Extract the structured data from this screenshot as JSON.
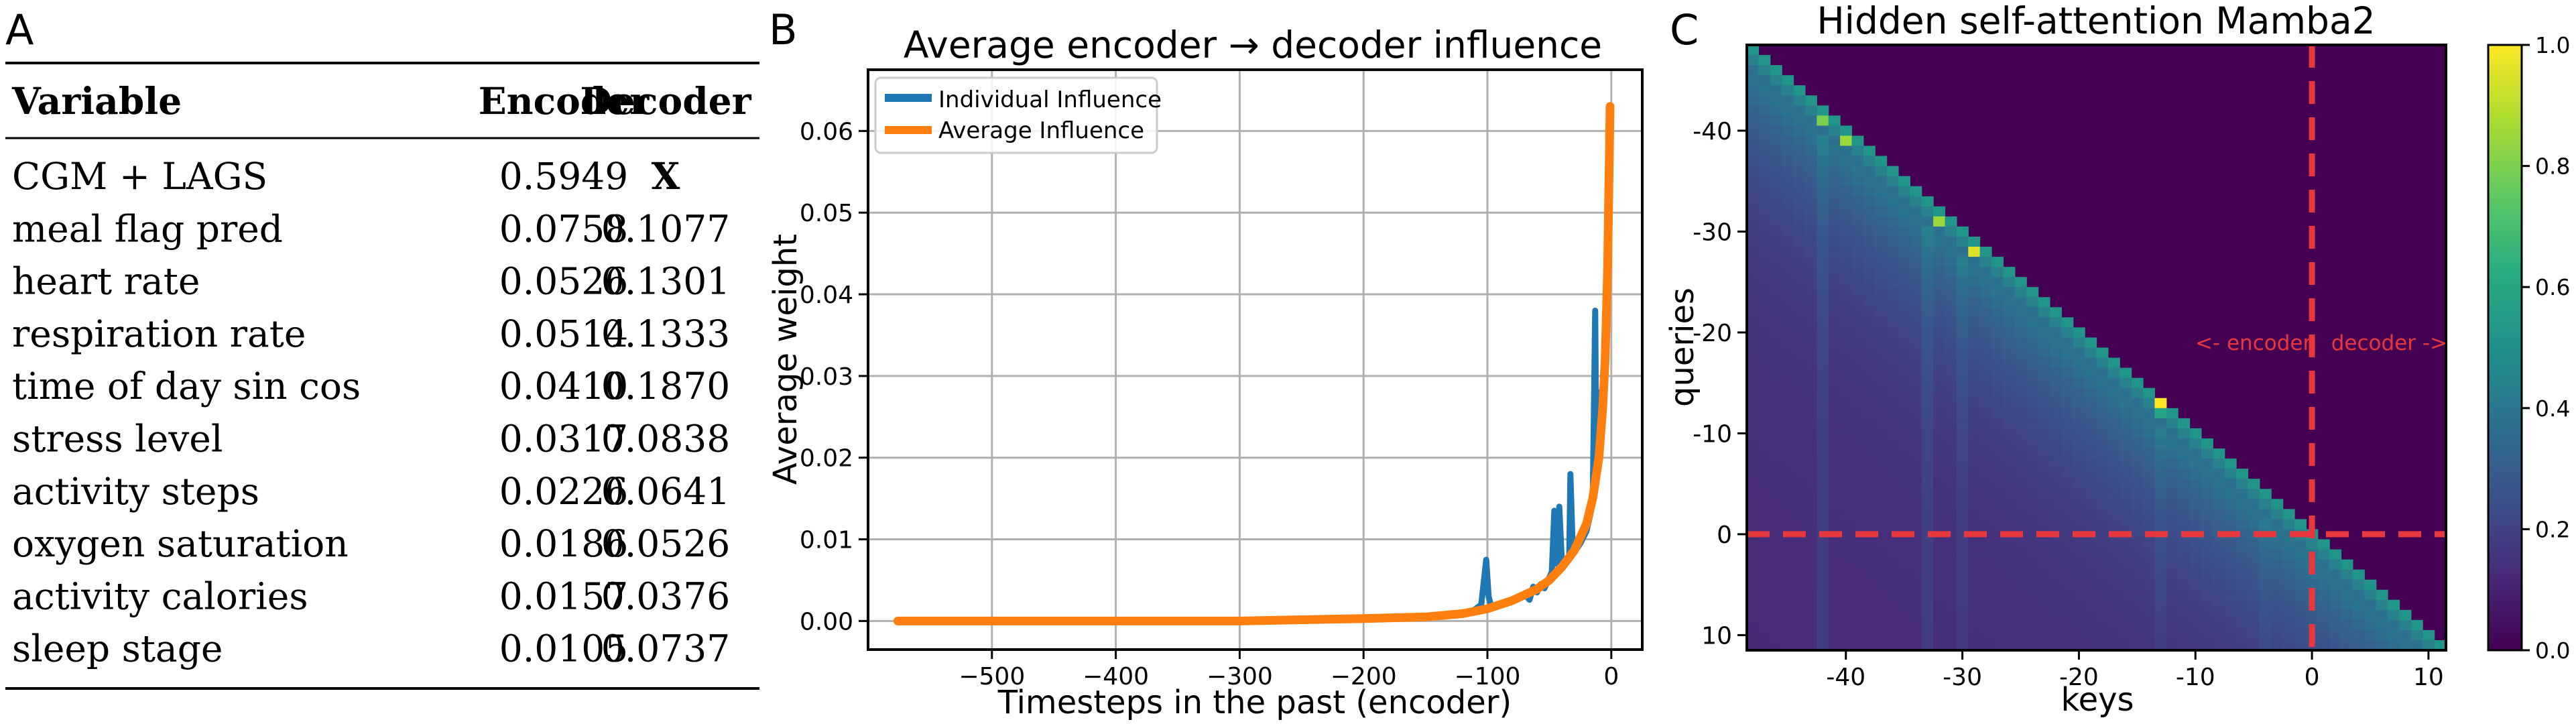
{
  "panels": {
    "a": "A",
    "b": "B",
    "c": "C"
  },
  "table": {
    "headers": [
      "Variable",
      "Encoder",
      "Decoder"
    ],
    "rows": [
      [
        "CGM + LAGS",
        "0.5949",
        "X"
      ],
      [
        "meal flag pred",
        "0.0758",
        "0.1077"
      ],
      [
        "heart rate",
        "0.0526",
        "0.1301"
      ],
      [
        "respiration rate",
        "0.0514",
        "0.1333"
      ],
      [
        "time of day sin cos",
        "0.0410",
        "0.1870"
      ],
      [
        "stress level",
        "0.0317",
        "0.0838"
      ],
      [
        "activity steps",
        "0.0226",
        "0.0641"
      ],
      [
        "oxygen saturation",
        "0.0186",
        "0.0526"
      ],
      [
        "activity calories",
        "0.0157",
        "0.0376"
      ],
      [
        "sleep stage",
        "0.0105",
        "0.0737"
      ]
    ]
  },
  "chart_data": [
    {
      "type": "table",
      "columns": [
        "Variable",
        "Encoder",
        "Decoder"
      ],
      "rows": [
        [
          "CGM + LAGS",
          0.5949,
          "X"
        ],
        [
          "meal flag pred",
          0.0758,
          0.1077
        ],
        [
          "heart rate",
          0.0526,
          0.1301
        ],
        [
          "respiration rate",
          0.0514,
          0.1333
        ],
        [
          "time of day sin cos",
          0.041,
          0.187
        ],
        [
          "stress level",
          0.0317,
          0.0838
        ],
        [
          "activity steps",
          0.0226,
          0.0641
        ],
        [
          "oxygen saturation",
          0.0186,
          0.0526
        ],
        [
          "activity calories",
          0.0157,
          0.0376
        ],
        [
          "sleep stage",
          0.0105,
          0.0737
        ]
      ]
    },
    {
      "type": "line",
      "title": "Average encoder → decoder influence",
      "xlabel": "Timesteps in the past (encoder)",
      "ylabel": "Average weight",
      "xlim": [
        -600,
        25
      ],
      "ylim": [
        -0.0035,
        0.0675
      ],
      "xticks": [
        -500,
        -400,
        -300,
        -200,
        -100,
        0
      ],
      "xtick_labels": [
        "−500",
        "−400",
        "−300",
        "−200",
        "−100",
        "0"
      ],
      "yticks": [
        0.0,
        0.01,
        0.02,
        0.03,
        0.04,
        0.05,
        0.06
      ],
      "ytick_labels": [
        "0.00",
        "0.01",
        "0.02",
        "0.03",
        "0.04",
        "0.05",
        "0.06"
      ],
      "grid": true,
      "legend_position": "top-left",
      "series": [
        {
          "name": "Individual Influence",
          "color": "#1f77b4",
          "x": [
            -576,
            -300,
            -200,
            -160,
            -130,
            -112,
            -105,
            -101,
            -99,
            -97,
            -95,
            -85,
            -70,
            -66,
            -63,
            -60,
            -57,
            -54,
            -48,
            -46,
            -44,
            -42,
            -40,
            -38,
            -34,
            -33,
            -31,
            -29,
            -25,
            -20,
            -17,
            -15,
            -13,
            -12,
            -11,
            -10,
            -8,
            -5,
            -3,
            -1
          ],
          "y": [
            0.0,
            0.0,
            0.0002,
            0.0004,
            0.0008,
            0.0012,
            0.002,
            0.0075,
            0.003,
            0.0018,
            0.0016,
            0.0022,
            0.0033,
            0.0026,
            0.0042,
            0.0035,
            0.0045,
            0.004,
            0.006,
            0.0135,
            0.007,
            0.014,
            0.0075,
            0.0068,
            0.0075,
            0.018,
            0.0082,
            0.0086,
            0.0095,
            0.011,
            0.013,
            0.0145,
            0.038,
            0.017,
            0.028,
            0.019,
            0.022,
            0.03,
            0.043,
            0.062
          ]
        },
        {
          "name": "Average Influence",
          "color": "#ff7f0e",
          "x": [
            -576,
            -300,
            -200,
            -150,
            -120,
            -100,
            -80,
            -60,
            -50,
            -40,
            -30,
            -20,
            -15,
            -10,
            -7,
            -5,
            -3,
            -1
          ],
          "y": [
            0.0,
            0.0,
            0.0003,
            0.0005,
            0.0009,
            0.0015,
            0.0025,
            0.0039,
            0.005,
            0.0066,
            0.0086,
            0.0119,
            0.015,
            0.02,
            0.026,
            0.032,
            0.043,
            0.063
          ]
        }
      ]
    },
    {
      "type": "heatmap",
      "title": "Hidden self-attention Mamba2",
      "xlabel": "keys",
      "ylabel": "queries",
      "xlim": [
        -48.5,
        11.5
      ],
      "ylim": [
        11.5,
        -48.5
      ],
      "xticks": [
        -40,
        -30,
        -20,
        -10,
        0,
        10
      ],
      "yticks": [
        -40,
        -30,
        -20,
        -10,
        0,
        10
      ],
      "colormap": "viridis",
      "color_range": [
        0.0,
        1.0
      ],
      "colorbar_ticks": [
        0.0,
        0.2,
        0.4,
        0.6,
        0.8,
        1.0
      ],
      "colorbar_tick_labels": [
        "0.0",
        "0.2",
        "0.4",
        "0.6",
        "0.8",
        "1.0"
      ],
      "masking": "causal (keys > queries are 0)",
      "divider_at": 0,
      "annotation": "<- encoder   decoder ->",
      "annotation_color": "#e8383d",
      "highlights": [
        {
          "key": -42,
          "query": -41,
          "value": 0.8
        },
        {
          "key": -40,
          "query": -39,
          "value": 0.85
        },
        {
          "key": -32,
          "query": -31,
          "value": 0.85
        },
        {
          "key": -29,
          "query": -28,
          "value": 0.95
        },
        {
          "key": -13,
          "query": -13,
          "value": 1.0
        }
      ]
    }
  ]
}
